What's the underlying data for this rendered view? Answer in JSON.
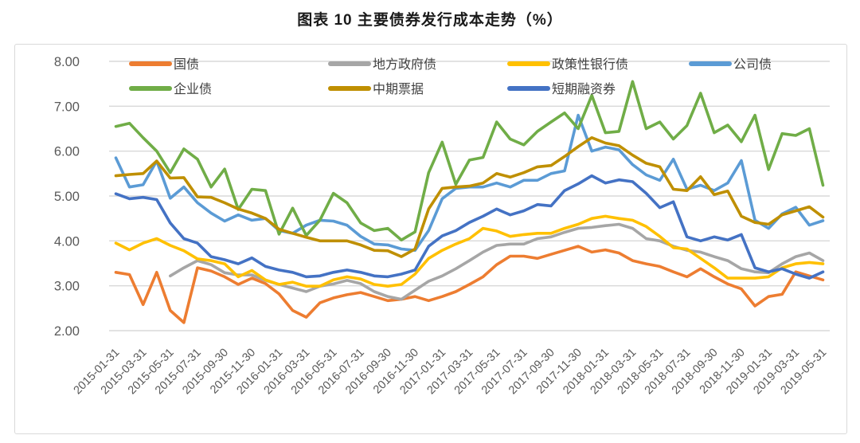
{
  "title": "图表 10 主要债券发行成本走势（%）",
  "chart_data": {
    "type": "line",
    "title": "图表 10 主要债券发行成本走势（%）",
    "ylabel": "",
    "xlabel": "",
    "ylim": [
      2.0,
      8.0
    ],
    "grid": "horizontal",
    "legend_position": "top-inside",
    "y_tick_labels": [
      "8.00",
      "7.00",
      "6.00",
      "5.00",
      "4.00",
      "3.00",
      "2.00"
    ],
    "y_tick_values": [
      8,
      7,
      6,
      5,
      4,
      3,
      2
    ],
    "x_tick_labels": [
      "2015-01-31",
      "2015-03-31",
      "2015-05-31",
      "2015-07-31",
      "2015-09-30",
      "2015-11-30",
      "2016-01-31",
      "2016-03-31",
      "2016-05-31",
      "2016-07-31",
      "2016-09-30",
      "2016-11-30",
      "2017-01-31",
      "2017-03-31",
      "2017-05-31",
      "2017-07-31",
      "2017-09-30",
      "2017-11-30",
      "2018-01-31",
      "2018-03-31",
      "2018-05-31",
      "2018-07-31",
      "2018-09-30",
      "2018-11-30",
      "2019-01-31",
      "2019-03-31",
      "2019-05-31"
    ],
    "x_tick_every_n_months": 2,
    "months_total": 53,
    "axis_text_color": "#595959",
    "gridline_color": "#d9d9d9",
    "series": [
      {
        "name": "国债",
        "key": "treasury-bond",
        "color": "#ED7D31",
        "values": [
          3.3,
          3.25,
          2.58,
          3.3,
          2.45,
          2.18,
          3.4,
          3.33,
          3.2,
          3.03,
          3.17,
          3.05,
          2.82,
          2.45,
          2.3,
          2.62,
          2.73,
          2.8,
          2.85,
          2.76,
          2.67,
          2.7,
          2.76,
          2.67,
          2.76,
          2.87,
          3.03,
          3.2,
          3.47,
          3.66,
          3.66,
          3.61,
          3.7,
          3.79,
          3.88,
          3.75,
          3.8,
          3.73,
          3.56,
          3.49,
          3.43,
          3.31,
          3.2,
          3.38,
          3.2,
          3.04,
          2.93,
          2.55,
          2.76,
          2.81,
          3.31,
          3.22,
          3.13
        ]
      },
      {
        "name": "地方政府债",
        "key": "local-government-bond",
        "color": "#A6A6A6",
        "values": [
          null,
          null,
          null,
          null,
          3.22,
          3.4,
          3.56,
          3.47,
          3.29,
          3.24,
          3.24,
          3.12,
          3.03,
          2.95,
          2.87,
          2.99,
          3.04,
          3.12,
          3.05,
          2.87,
          2.76,
          2.7,
          2.9,
          3.1,
          3.22,
          3.38,
          3.56,
          3.75,
          3.9,
          3.93,
          3.93,
          4.05,
          4.09,
          4.19,
          4.28,
          4.3,
          4.34,
          4.37,
          4.28,
          4.05,
          4.0,
          3.88,
          3.79,
          3.75,
          3.65,
          3.56,
          3.38,
          3.31,
          3.29,
          3.49,
          3.65,
          3.73,
          3.56
        ]
      },
      {
        "name": "政策性银行债",
        "key": "policy-bank-bond",
        "color": "#FFC000",
        "values": [
          3.95,
          3.8,
          3.95,
          4.05,
          3.9,
          3.78,
          3.6,
          3.56,
          3.49,
          3.2,
          3.34,
          3.13,
          3.03,
          3.08,
          2.99,
          2.99,
          3.13,
          3.2,
          3.15,
          3.03,
          2.99,
          3.03,
          3.26,
          3.61,
          3.79,
          3.93,
          4.05,
          4.28,
          4.22,
          4.1,
          4.14,
          4.17,
          4.17,
          4.28,
          4.37,
          4.5,
          4.55,
          4.5,
          4.46,
          4.32,
          4.1,
          3.85,
          3.82,
          3.61,
          3.4,
          3.17,
          3.17,
          3.17,
          3.2,
          3.4,
          3.49,
          3.52,
          3.49
        ]
      },
      {
        "name": "公司债",
        "key": "corporate-bond",
        "color": "#5B9BD5",
        "values": [
          5.85,
          5.2,
          5.25,
          5.78,
          4.95,
          5.2,
          4.85,
          4.62,
          4.44,
          4.58,
          4.46,
          4.5,
          4.23,
          4.17,
          4.35,
          4.46,
          4.44,
          4.35,
          4.1,
          3.93,
          3.91,
          3.82,
          3.79,
          4.23,
          4.94,
          5.17,
          5.2,
          5.2,
          5.29,
          5.2,
          5.35,
          5.35,
          5.5,
          5.56,
          6.8,
          6.0,
          6.09,
          6.03,
          5.7,
          5.47,
          5.35,
          5.82,
          5.15,
          5.24,
          5.12,
          5.29,
          5.79,
          4.46,
          4.28,
          4.6,
          4.75,
          4.35,
          4.45
        ]
      },
      {
        "name": "企业债",
        "key": "enterprise-bond",
        "color": "#70AD47",
        "values": [
          6.55,
          6.62,
          6.3,
          6.0,
          5.52,
          6.05,
          5.82,
          5.2,
          5.6,
          4.7,
          5.15,
          5.12,
          4.15,
          4.73,
          4.12,
          4.46,
          5.06,
          4.85,
          4.4,
          4.23,
          4.28,
          4.02,
          4.2,
          5.52,
          6.2,
          5.26,
          5.8,
          5.86,
          6.65,
          6.27,
          6.14,
          6.44,
          6.65,
          6.85,
          6.5,
          7.24,
          6.41,
          6.44,
          7.55,
          6.5,
          6.65,
          6.27,
          6.57,
          7.29,
          6.41,
          6.58,
          6.21,
          6.8,
          5.59,
          6.39,
          6.35,
          6.5,
          5.24
        ]
      },
      {
        "name": "中期票据",
        "key": "medium-term-note",
        "color": "#BF8F00",
        "values": [
          5.45,
          5.48,
          5.5,
          5.78,
          5.4,
          5.41,
          4.98,
          4.97,
          4.85,
          4.71,
          4.62,
          4.5,
          4.26,
          4.17,
          4.08,
          4.0,
          4.0,
          4.0,
          3.91,
          3.79,
          3.78,
          3.65,
          3.82,
          4.71,
          5.17,
          5.2,
          5.22,
          5.29,
          5.5,
          5.42,
          5.52,
          5.65,
          5.68,
          5.88,
          6.1,
          6.3,
          6.18,
          6.12,
          5.91,
          5.73,
          5.65,
          5.15,
          5.12,
          5.43,
          5.03,
          5.11,
          4.55,
          4.41,
          4.37,
          4.58,
          4.67,
          4.76,
          4.53
        ]
      },
      {
        "name": "短期融资券",
        "key": "short-term-financing-bill",
        "color": "#4472C4",
        "values": [
          5.05,
          4.94,
          4.97,
          4.92,
          4.4,
          4.05,
          3.95,
          3.65,
          3.58,
          3.49,
          3.62,
          3.43,
          3.35,
          3.3,
          3.2,
          3.22,
          3.3,
          3.35,
          3.3,
          3.22,
          3.2,
          3.26,
          3.35,
          3.88,
          4.11,
          4.23,
          4.41,
          4.55,
          4.71,
          4.58,
          4.67,
          4.81,
          4.78,
          5.12,
          5.27,
          5.45,
          5.29,
          5.36,
          5.32,
          5.06,
          4.74,
          4.87,
          4.09,
          4.0,
          4.09,
          4.02,
          4.14,
          3.4,
          3.31,
          3.38,
          3.26,
          3.17,
          3.31
        ]
      }
    ]
  }
}
